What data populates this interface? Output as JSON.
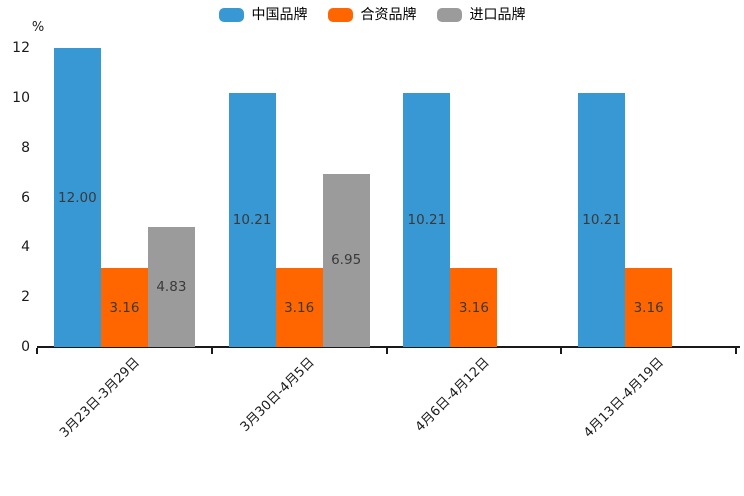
{
  "page": {
    "background": "#ffffff"
  },
  "chart_data": {
    "type": "bar",
    "title": "",
    "unit_label": "%",
    "categories": [
      "3月23日-3月29日",
      "3月30日-4月5日",
      "4月6日-4月12日",
      "4月13日-4月19日"
    ],
    "series": [
      {
        "name": "中国品牌",
        "color": "#3898d3",
        "values": [
          12.0,
          10.21,
          10.21,
          10.21
        ]
      },
      {
        "name": "合资品牌",
        "color": "#ff6600",
        "values": [
          3.16,
          3.16,
          3.16,
          3.16
        ]
      },
      {
        "name": "进口品牌",
        "color": "#9b9b9b",
        "values": [
          4.83,
          6.95,
          null,
          null
        ]
      }
    ],
    "value_labels": [
      [
        "12.00",
        "3.16",
        "4.83"
      ],
      [
        "10.21",
        "3.16",
        "6.95"
      ],
      [
        "10.21",
        "3.16",
        null
      ],
      [
        "10.21",
        "3.16",
        null
      ]
    ],
    "y_ticks": [
      0,
      2,
      4,
      6,
      8,
      10,
      12
    ],
    "ylim": [
      0,
      12
    ],
    "legend_position": "top",
    "grid": false,
    "axis_color": "#1a1a1a",
    "value_label_color": "#3a3a3a"
  }
}
